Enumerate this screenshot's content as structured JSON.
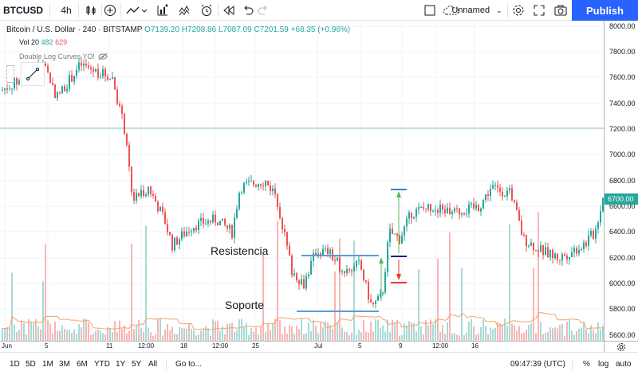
{
  "toolbar": {
    "symbol": "BTCUSD",
    "interval": "4h",
    "layout_name": "Unnamed",
    "publish_label": "Publish",
    "icons": [
      "candles-icon",
      "add-indicator-icon",
      "compare-icon",
      "indicators-icon",
      "templates-icon",
      "alert-icon",
      "replay-icon",
      "undo-icon",
      "redo-icon",
      "layout-icon",
      "cloud-icon",
      "settings-icon",
      "fullscreen-icon",
      "camera-icon"
    ]
  },
  "legend": {
    "title": "Bitcoin / U.S. Dollar",
    "interval": "240",
    "exchange": "BITSTAMP",
    "open": "O7139.20",
    "high": "H7208.86",
    "low": "L7087.09",
    "close": "C7201.59",
    "change": "+68.35 (+0.96%)",
    "volume_label": "Vol 20",
    "volume_value_1": "482",
    "volume_value_2": "629",
    "indicator": "Double Log Curves YO!"
  },
  "annotations": {
    "resistance": "Resistencia",
    "support": "Soporte"
  },
  "price_axis": {
    "ticks": [
      "8000.00",
      "7800.00",
      "7600.00",
      "7400.00",
      "7200.00",
      "7000.00",
      "6800.00",
      "6600.00",
      "6400.00",
      "6200.00",
      "6000.00",
      "5800.00",
      "5600.00"
    ],
    "current_price": "6700.00"
  },
  "time_axis": {
    "ticks": [
      "Jun",
      "5",
      "11",
      "12:00",
      "18",
      "12:00",
      "25",
      "Jul",
      "5",
      "9",
      "12:00",
      "16"
    ]
  },
  "bottom": {
    "ranges": [
      "1D",
      "5D",
      "1M",
      "3M",
      "6M",
      "YTD",
      "1Y",
      "5Y",
      "All"
    ],
    "goto": "Go to...",
    "clock": "09:47:39 (UTC)",
    "percent": "%",
    "log": "log",
    "auto": "auto"
  },
  "colors": {
    "up": "#26a69a",
    "down": "#ef5350",
    "accent": "#2962ff"
  }
}
